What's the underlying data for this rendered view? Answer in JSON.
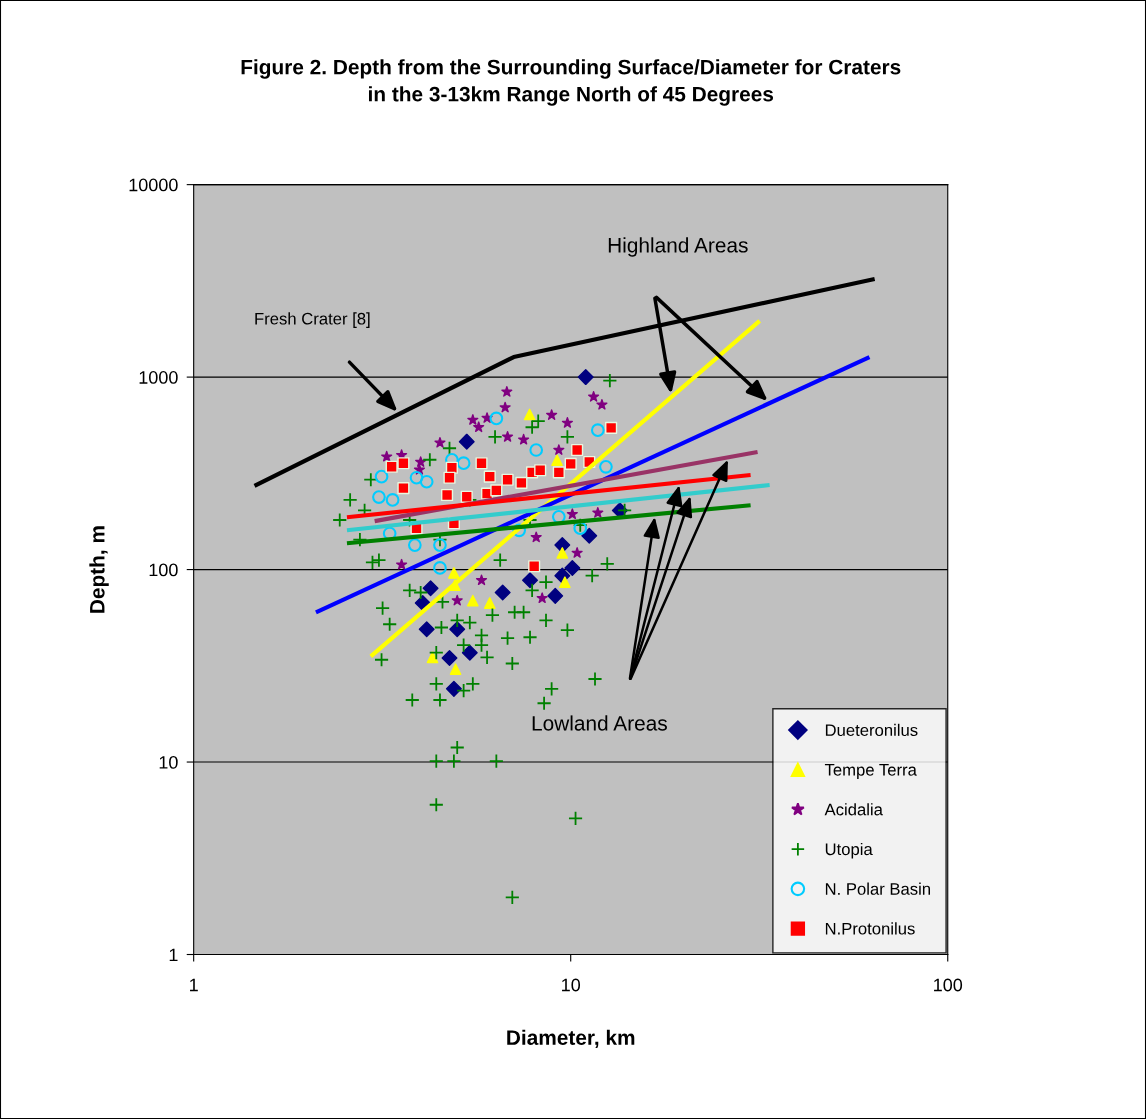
{
  "chart_data": {
    "type": "scatter",
    "title": "Figure 2. Depth from the Surrounding Surface/Diameter for Craters\nin the 3-13km Range North of 45 Degrees",
    "xlabel": "Diameter, km",
    "ylabel": "Depth, m",
    "log": "xy",
    "xlim": [
      1,
      100
    ],
    "ylim": [
      1,
      10000
    ],
    "xticks": [
      1,
      10,
      100
    ],
    "yticks": [
      1,
      10,
      100,
      1000,
      10000
    ],
    "grid": "y",
    "legend": "bottom right",
    "annotations": [
      "Fresh Crater [8]",
      "Highland Areas",
      "Lowland Areas"
    ],
    "series": [
      {
        "name": "Dueteronilus",
        "marker": "diamond",
        "color": "#000080",
        "x": [
          10.96,
          13.5,
          11.2,
          9.5,
          5.3,
          4.25,
          4.05,
          6.6,
          7.8,
          9.5,
          9.1,
          10.1,
          4.15,
          5.0,
          4.77,
          5.4,
          4.9
        ],
        "values": [
          1000,
          203,
          150,
          134,
          462,
          80,
          67,
          76,
          88,
          93,
          73,
          102,
          49,
          49,
          34.7,
          37,
          24
        ]
      },
      {
        "name": "Tempe Terra",
        "marker": "triangle",
        "color": "#ffff00",
        "x": [
          7.78,
          9.2,
          9.5,
          4.9,
          5.5,
          6.1,
          4.3,
          4.95,
          9.65,
          4.93
        ],
        "values": [
          640,
          370,
          122,
          96,
          69,
          67,
          35,
          30.4,
          86,
          83
        ]
      },
      {
        "name": "Acidalia",
        "marker": "star",
        "color": "#800080",
        "x": [
          6.77,
          6.7,
          11.5,
          12.1,
          8.9,
          9.8,
          6.0,
          5.5,
          5.7,
          4.5,
          3.25,
          3.56,
          4.0,
          6.8,
          7.5,
          9.3,
          11.8,
          10.1,
          8.1,
          8.4,
          5.8,
          3.56,
          5.0,
          10.4,
          3.97
        ],
        "values": [
          838,
          695,
          790,
          718,
          635,
          578,
          613,
          599,
          549,
          456,
          386,
          393,
          362,
          489,
          473,
          418,
          197,
          194,
          147,
          71,
          88,
          106,
          69,
          122,
          330
        ]
      },
      {
        "name": "Utopia",
        "marker": "cross",
        "color": "#008000",
        "x": [
          12.7,
          8.2,
          7.9,
          6.3,
          4.77,
          4.23,
          9.8,
          2.98,
          3.17,
          3.31,
          3.74,
          4.0,
          4.57,
          4.54,
          5.0,
          5.4,
          5.8,
          5.8,
          5.2,
          6.8,
          7.8,
          8.6,
          9.8,
          7.1,
          7.5,
          6.2,
          6.0,
          7.0,
          4.4,
          5.5,
          3.8,
          4.5,
          8.9,
          8.5,
          11.6,
          12.5,
          11.4,
          8.6,
          7.9,
          3.15,
          4.4,
          5.2,
          5.0,
          4.4,
          4.9,
          6.35,
          4.4,
          10.3,
          7.0,
          2.95,
          2.84,
          2.6,
          2.44,
          2.76,
          3.1,
          3.74,
          4.5,
          5.4,
          6.5,
          7.8,
          10.6,
          13.9
        ],
        "values": [
          959,
          590,
          549,
          489,
          427,
          372,
          489,
          109,
          63,
          52,
          78,
          76,
          68,
          50,
          54.5,
          53,
          45.5,
          40.5,
          40.5,
          44,
          44.5,
          54.5,
          48.5,
          60,
          60,
          58,
          35,
          32.5,
          25.5,
          25.5,
          21,
          21,
          24,
          20.2,
          27,
          107,
          93,
          86,
          78,
          34,
          37,
          23.5,
          11.9,
          10.1,
          10.1,
          10.1,
          6.0,
          5.1,
          1.98,
          293,
          203,
          230,
          181,
          143,
          112,
          181,
          143,
          230,
          112,
          181,
          170,
          203
        ]
      },
      {
        "name": "N. Polar Basin",
        "marker": "circle",
        "color": "#00ccff",
        "x": [
          6.35,
          11.8,
          8.1,
          5.2,
          4.84,
          3.15,
          12.4,
          3.9,
          4.15,
          3.1,
          3.37,
          3.31,
          3.86,
          4.5,
          10.6,
          9.3,
          7.3,
          4.5
        ],
        "values": [
          610,
          530,
          418,
          357,
          372,
          304,
          342,
          300,
          286,
          238,
          230,
          154,
          134,
          134,
          164,
          188,
          160,
          102
        ]
      },
      {
        "name": "N.Protonilus",
        "marker": "square",
        "color": "#ff0000",
        "x": [
          12.8,
          10.4,
          11.2,
          10.0,
          9.3,
          7.9,
          8.3,
          5.8,
          6.1,
          6.8,
          7.4,
          4.84,
          4.77,
          3.6,
          3.35,
          3.6,
          4.7,
          5.3,
          6.0,
          6.35,
          3.9,
          4.9,
          8.0
        ],
        "values": [
          545,
          418,
          362,
          354,
          320,
          320,
          328,
          357,
          304,
          293,
          282,
          338,
          300,
          357,
          342,
          265,
          244,
          239,
          248,
          258,
          164,
          174,
          104
        ]
      },
      {
        "type": "line",
        "color": "#000000",
        "x": [
          1.45,
          7.06,
          64
        ],
        "values": [
          272,
          1271,
          3236
        ]
      },
      {
        "type": "line",
        "color": "#ffff00",
        "x": [
          2.95,
          31.7
        ],
        "values": [
          35.4,
          1958
        ]
      },
      {
        "type": "line",
        "color": "#0000ff",
        "x": [
          2.11,
          62
        ],
        "values": [
          60,
          1271
        ]
      },
      {
        "type": "line",
        "color": "#993366",
        "x": [
          3.02,
          31.3
        ],
        "values": [
          178.6,
          408
        ]
      },
      {
        "type": "line",
        "color": "#33cccc",
        "x": [
          2.55,
          33.7
        ],
        "values": [
          160,
          275
        ]
      },
      {
        "type": "line",
        "color": "#ff0000",
        "x": [
          2.55,
          30
        ],
        "values": [
          187,
          310
        ]
      },
      {
        "type": "line",
        "color": "#008000",
        "x": [
          2.55,
          30
        ],
        "values": [
          137,
          216
        ]
      }
    ]
  }
}
